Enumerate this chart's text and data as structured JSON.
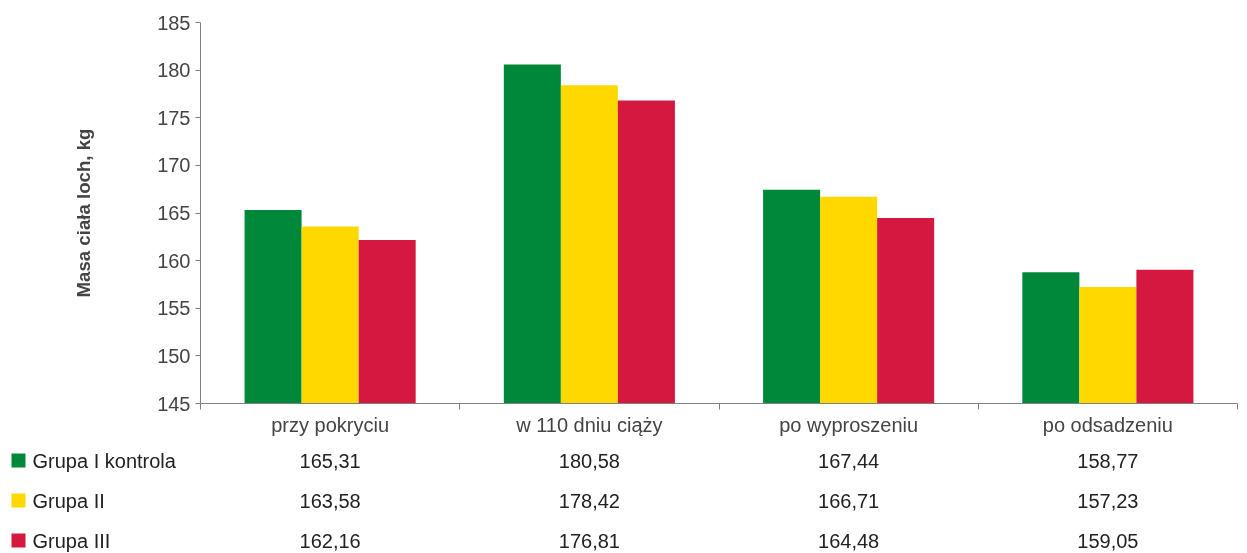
{
  "chart_data": {
    "type": "bar",
    "ylabel": "Masa ciała loch, kg",
    "categories": [
      "przy pokryciu",
      "w 110 dniu ciąży",
      "po wyproszeniu",
      "po odsadzeniu"
    ],
    "series": [
      {
        "name": "Grupa I kontrola",
        "color": "#00883a",
        "values": [
          165.31,
          180.58,
          167.44,
          158.77
        ],
        "value_labels": [
          "165,31",
          "180,58",
          "167,44",
          "158,77"
        ]
      },
      {
        "name": "Grupa II",
        "color": "#ffd800",
        "values": [
          163.58,
          178.42,
          166.71,
          157.23
        ],
        "value_labels": [
          "163,58",
          "178,42",
          "166,71",
          "157,23"
        ]
      },
      {
        "name": "Grupa III",
        "color": "#d4183f",
        "values": [
          162.16,
          176.81,
          164.48,
          159.05
        ],
        "value_labels": [
          "162,16",
          "176,81",
          "164,48",
          "159,05"
        ]
      }
    ],
    "ylim": [
      145,
      185
    ],
    "yticks": [
      145,
      150,
      155,
      160,
      165,
      170,
      175,
      180,
      185
    ],
    "legend": "bottom"
  }
}
